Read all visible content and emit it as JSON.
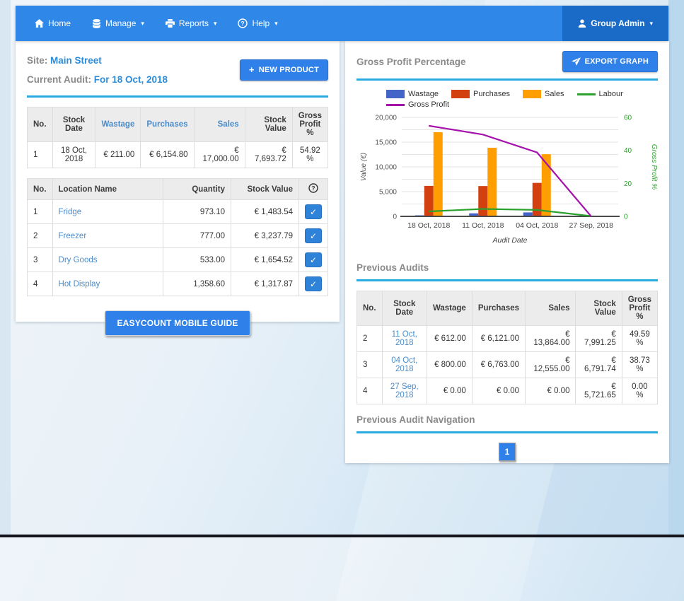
{
  "icons": {
    "caret": "▾",
    "check": "✓",
    "plus": "+"
  },
  "navbar": {
    "items": [
      {
        "label": "Home",
        "icon": "home-icon",
        "caret": false
      },
      {
        "label": "Manage",
        "icon": "database-icon",
        "caret": true
      },
      {
        "label": "Reports",
        "icon": "printer-icon",
        "caret": true
      },
      {
        "label": "Help",
        "icon": "help-circle-icon",
        "caret": true
      }
    ],
    "user": {
      "label": "Group Admin",
      "icon": "user-icon",
      "caret": true
    }
  },
  "left_panel": {
    "site_label": "Site:",
    "site_value": "Main Street",
    "audit_label": "Current Audit:",
    "audit_value": "For 18 Oct, 2018",
    "new_product_button": "NEW PRODUCT",
    "summary_table": {
      "headers": [
        "No.",
        "Stock Date",
        "Wastage",
        "Purchases",
        "Sales",
        "Stock Value",
        "Gross Profit %"
      ],
      "link_headers": [
        "Wastage",
        "Purchases",
        "Sales"
      ],
      "rows": [
        [
          "1",
          "18 Oct, 2018",
          "€ 211.00",
          "€ 6,154.80",
          "€ 17,000.00",
          "€ 7,693.72",
          "54.92 %"
        ]
      ]
    },
    "locations_table": {
      "headers": [
        "No.",
        "Location Name",
        "Quantity",
        "Stock Value"
      ],
      "link_cols": [
        1
      ],
      "rows": [
        [
          "1",
          "Fridge",
          "973.10",
          "€ 1,483.54"
        ],
        [
          "2",
          "Freezer",
          "777.00",
          "€ 3,237.79"
        ],
        [
          "3",
          "Dry Goods",
          "533.00",
          "€ 1,654.52"
        ],
        [
          "4",
          "Hot Display",
          "1,358.60",
          "€ 1,317.87"
        ]
      ]
    },
    "guide_button": "EASYCOUNT MOBILE GUIDE"
  },
  "right_panel": {
    "title": "Gross Profit Percentage",
    "export_button": "EXPORT GRAPH",
    "previous_audits_title": "Previous Audits",
    "previous_audits_table": {
      "headers": [
        "No.",
        "Stock Date",
        "Wastage",
        "Purchases",
        "Sales",
        "Stock Value",
        "Gross Profit %"
      ],
      "link_cols": [
        1
      ],
      "rows": [
        [
          "2",
          "11 Oct, 2018",
          "€ 612.00",
          "€ 6,121.00",
          "€ 13,864.00",
          "€ 7,991.25",
          "49.59 %"
        ],
        [
          "3",
          "04 Oct, 2018",
          "€ 800.00",
          "€ 6,763.00",
          "€ 12,555.00",
          "€ 6,791.74",
          "38.73 %"
        ],
        [
          "4",
          "27 Sep, 2018",
          "€ 0.00",
          "€ 0.00",
          "€ 0.00",
          "€ 5,721.65",
          "0.00 %"
        ]
      ]
    },
    "navigation_title": "Previous Audit Navigation",
    "pagination": [
      "1"
    ]
  },
  "chart_data": {
    "type": "bar",
    "categories": [
      "18 Oct, 2018",
      "11 Oct, 2018",
      "04 Oct, 2018",
      "27 Sep, 2018"
    ],
    "bar_series": [
      {
        "name": "Wastage",
        "color": "#4465c8",
        "values": [
          211,
          612,
          800,
          0
        ]
      },
      {
        "name": "Purchases",
        "color": "#d2400f",
        "values": [
          6154.8,
          6121,
          6763,
          0
        ]
      },
      {
        "name": "Sales",
        "color": "#ff9e00",
        "values": [
          17000,
          13864,
          12555,
          0
        ]
      }
    ],
    "line_series": [
      {
        "name": "Labour",
        "color": "#2da12d",
        "axis": "left",
        "values": [
          1000,
          1500,
          1300,
          50
        ]
      },
      {
        "name": "Gross Profit",
        "color": "#a512ab",
        "axis": "right",
        "values": [
          54.92,
          49.59,
          38.73,
          0
        ]
      }
    ],
    "left_axis": {
      "title": "Value (€)",
      "min": 0,
      "max": 20000,
      "label_step": 5000,
      "grid_step": 2500
    },
    "right_axis": {
      "title": "Gross Profit %",
      "min": 0,
      "max": 60,
      "label_step": 20,
      "color": "#2da12d"
    },
    "x_axis": {
      "title": "Audit Date"
    },
    "legend_position": "top",
    "grid": true
  },
  "colors": {
    "navbar": "#2f88e8",
    "navbar_user": "#1a6bc7",
    "accent_underline": "#29abe2",
    "button_blue": "#2f80e8",
    "link_blue": "#4b8bc8",
    "heading_gray": "#8a8a8a",
    "value_blue": "#2d8cd8"
  }
}
